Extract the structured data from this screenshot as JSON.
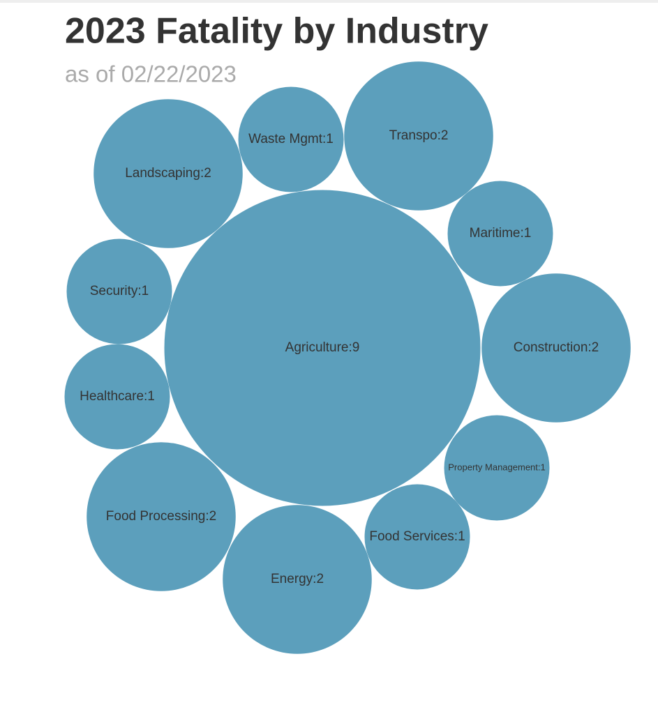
{
  "chart_data": {
    "type": "bubble",
    "title": "2023 Fatality by Industry",
    "subtitle": "as of 02/22/2023",
    "values": [
      9,
      2,
      1,
      2,
      1,
      2,
      1,
      1,
      2,
      2,
      1,
      1
    ],
    "value_labels": [
      "Agriculture:9",
      "Landscaping:2",
      "Waste Mgmt:1",
      "Transpo:2",
      "Maritime:1",
      "Construction:2",
      "Property Management:1",
      "Food Services:1",
      "Energy:2",
      "Food Processing:2",
      "Healthcare:1",
      "Security:1"
    ],
    "color": "#5c9fbc"
  }
}
